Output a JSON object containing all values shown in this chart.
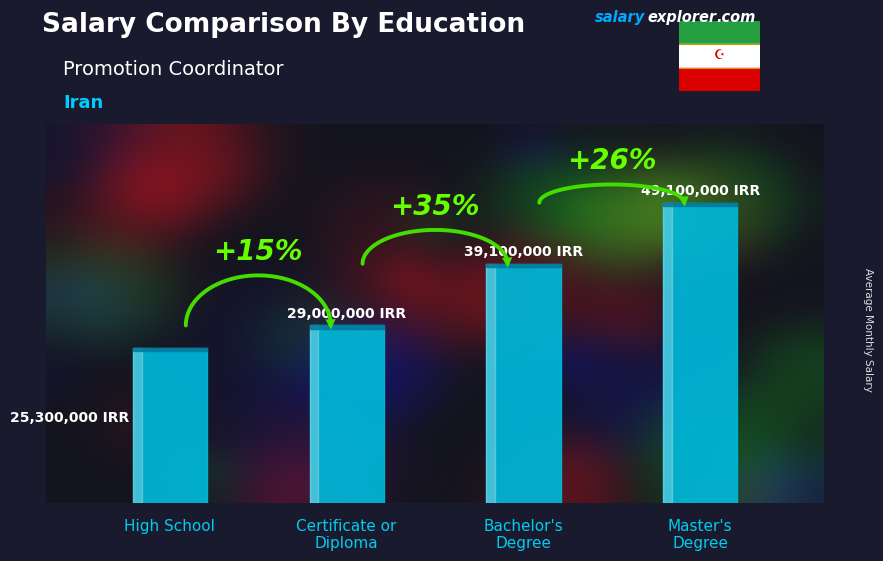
{
  "title": "Salary Comparison By Education",
  "subtitle": "Promotion Coordinator",
  "country": "Iran",
  "categories": [
    "High School",
    "Certificate or\nDiploma",
    "Bachelor's\nDegree",
    "Master's\nDegree"
  ],
  "values": [
    25300000,
    29000000,
    39100000,
    49100000
  ],
  "labels": [
    "25,300,000 IRR",
    "29,000,000 IRR",
    "39,100,000 IRR",
    "49,100,000 IRR"
  ],
  "pct_changes": [
    "+15%",
    "+35%",
    "+26%"
  ],
  "bar_color": "#00b8d9",
  "bar_alpha": 0.92,
  "bg_color": "#1a1a2e",
  "title_color": "#ffffff",
  "subtitle_color": "#ffffff",
  "country_color": "#00ccff",
  "label_color": "#ffffff",
  "pct_color": "#66ff00",
  "arrow_color": "#44dd00",
  "xticklabel_color": "#00ccee",
  "ylabel": "Average Monthly Salary",
  "brand_salary_color": "#00aaff",
  "brand_explorer_color": "#ffffff",
  "brand_com_color": "#ffffff",
  "ylim": [
    0,
    62000000
  ],
  "bar_width": 0.42,
  "label_fontsize": 10,
  "pct_fontsize": 20
}
